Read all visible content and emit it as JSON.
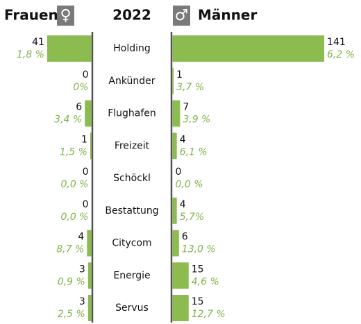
{
  "chart_data": {
    "type": "butterfly",
    "left_title": "Frauen",
    "left_symbol": "♀",
    "center_title": "2022",
    "right_symbol": "♂",
    "right_title": "Männer",
    "color": "#8cbb50",
    "categories": [
      "Holding",
      "Ankünder",
      "Flughafen",
      "Freizeit",
      "Schöckl",
      "Bestattung",
      "Citycom",
      "Energie",
      "Servus"
    ],
    "series": [
      {
        "name": "Frauen",
        "values": [
          41,
          0,
          6,
          1,
          0,
          0,
          4,
          3,
          3
        ],
        "shares": [
          1.8,
          0,
          3.4,
          1.5,
          0,
          0,
          8.7,
          0.9,
          2.5
        ],
        "share_labels": [
          "1,8 %",
          "0%",
          "3,4 %",
          "1,5 %",
          "0,0 %",
          "0,0 %",
          "8,7 %",
          "0,9 %",
          "2,5 %"
        ]
      },
      {
        "name": "Männer",
        "values": [
          141,
          1,
          7,
          4,
          0,
          4,
          6,
          15,
          15
        ],
        "shares": [
          6.2,
          3.7,
          3.9,
          6.1,
          0,
          5.7,
          13.0,
          4.6,
          12.7
        ],
        "share_labels": [
          "6,2 %",
          "3,7 %",
          "3,9 %",
          "6,1 %",
          "0,0 %",
          "5,7%",
          "13,0 %",
          "4,6 %",
          "12,7 %"
        ]
      }
    ]
  }
}
